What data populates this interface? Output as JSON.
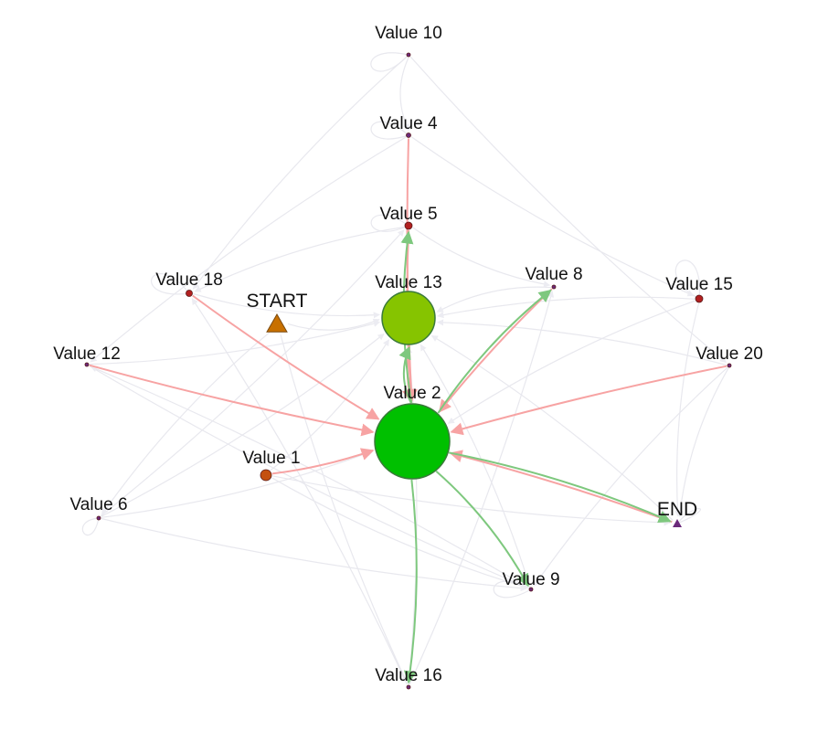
{
  "colors": {
    "background": "#ffffff",
    "edge_faint": "#e8e8ee",
    "edge_red": "#f7a3a3",
    "edge_green": "#7ec87e",
    "node_purple": "#6b2a7a",
    "node_red": "#b22020",
    "node_orange": "#c4500f",
    "node_lime": "#86c400",
    "node_green": "#00c000",
    "node_triangle": "#c87000"
  },
  "nodes": [
    {
      "id": "value10",
      "label": "Value 10",
      "shape": "dot",
      "color": "#6b2a7a"
    },
    {
      "id": "value4",
      "label": "Value 4",
      "shape": "dot",
      "color": "#6b2a7a"
    },
    {
      "id": "value5",
      "label": "Value 5",
      "shape": "dot",
      "color": "#b22020"
    },
    {
      "id": "value13",
      "label": "Value 13",
      "shape": "circle",
      "color": "#86c400"
    },
    {
      "id": "value18",
      "label": "Value 18",
      "shape": "dot",
      "color": "#b22020"
    },
    {
      "id": "start",
      "label": "START",
      "shape": "triangle",
      "color": "#c87000"
    },
    {
      "id": "value8",
      "label": "Value 8",
      "shape": "dot",
      "color": "#6b2a7a"
    },
    {
      "id": "value15",
      "label": "Value 15",
      "shape": "dot",
      "color": "#b22020"
    },
    {
      "id": "value12",
      "label": "Value 12",
      "shape": "dot",
      "color": "#6b2a7a"
    },
    {
      "id": "value20",
      "label": "Value 20",
      "shape": "dot",
      "color": "#6b2a7a"
    },
    {
      "id": "value2",
      "label": "Value 2",
      "shape": "circle",
      "color": "#00c000"
    },
    {
      "id": "value1",
      "label": "Value 1",
      "shape": "dot",
      "color": "#c4500f"
    },
    {
      "id": "value6",
      "label": "Value 6",
      "shape": "dot",
      "color": "#6b2a7a"
    },
    {
      "id": "end",
      "label": "END",
      "shape": "triangle-small",
      "color": "#6b2a7a"
    },
    {
      "id": "value9",
      "label": "Value 9",
      "shape": "dot",
      "color": "#6b2a7a"
    },
    {
      "id": "value16",
      "label": "Value 16",
      "shape": "dot",
      "color": "#6b2a7a"
    }
  ],
  "edges": [
    {
      "from": "value18",
      "to": "value2",
      "kind": "red"
    },
    {
      "from": "value12",
      "to": "value2",
      "kind": "red"
    },
    {
      "from": "value1",
      "to": "value2",
      "kind": "red"
    },
    {
      "from": "value20",
      "to": "value2",
      "kind": "red"
    },
    {
      "from": "value8",
      "to": "value2",
      "kind": "red"
    },
    {
      "from": "value4",
      "to": "value2",
      "kind": "red"
    },
    {
      "from": "value5",
      "to": "value2",
      "kind": "red"
    },
    {
      "from": "value13",
      "to": "value2",
      "kind": "red"
    },
    {
      "from": "end",
      "to": "value2",
      "kind": "red"
    },
    {
      "from": "value2",
      "to": "value13",
      "kind": "green"
    },
    {
      "from": "value2",
      "to": "value5",
      "kind": "green"
    },
    {
      "from": "value2",
      "to": "value8",
      "kind": "green"
    },
    {
      "from": "value2",
      "to": "end",
      "kind": "green"
    },
    {
      "from": "value2",
      "to": "value9",
      "kind": "green"
    },
    {
      "from": "value2",
      "to": "value16",
      "kind": "green"
    },
    {
      "from": "start",
      "to": "value13",
      "kind": "faint"
    },
    {
      "from": "value10",
      "to": "value4",
      "kind": "faint"
    },
    {
      "from": "value18",
      "to": "value13",
      "kind": "faint"
    },
    {
      "from": "value12",
      "to": "value13",
      "kind": "faint"
    },
    {
      "from": "value6",
      "to": "value13",
      "kind": "faint"
    },
    {
      "from": "value6",
      "to": "value5",
      "kind": "faint"
    },
    {
      "from": "value8",
      "to": "value13",
      "kind": "faint"
    },
    {
      "from": "value15",
      "to": "value13",
      "kind": "faint"
    },
    {
      "from": "value20",
      "to": "value13",
      "kind": "faint"
    },
    {
      "from": "value9",
      "to": "value13",
      "kind": "faint"
    },
    {
      "from": "value16",
      "to": "value13",
      "kind": "faint"
    },
    {
      "from": "value1",
      "to": "value13",
      "kind": "faint"
    },
    {
      "from": "end",
      "to": "value13",
      "kind": "faint"
    },
    {
      "from": "value10",
      "to": "value20",
      "kind": "faint"
    },
    {
      "from": "value10",
      "to": "value18",
      "kind": "faint"
    },
    {
      "from": "value4",
      "to": "value15",
      "kind": "faint"
    },
    {
      "from": "value4",
      "to": "value12",
      "kind": "faint"
    },
    {
      "from": "value6",
      "to": "value9",
      "kind": "faint"
    },
    {
      "from": "value6",
      "to": "value2",
      "kind": "faint"
    },
    {
      "from": "value12",
      "to": "value9",
      "kind": "faint"
    },
    {
      "from": "value1",
      "to": "value9",
      "kind": "faint"
    },
    {
      "from": "value1",
      "to": "end",
      "kind": "faint"
    },
    {
      "from": "value16",
      "to": "value8",
      "kind": "faint"
    },
    {
      "from": "value16",
      "to": "value18",
      "kind": "faint"
    },
    {
      "from": "value15",
      "to": "value2",
      "kind": "faint"
    },
    {
      "from": "value15",
      "to": "end",
      "kind": "faint"
    },
    {
      "from": "value20",
      "to": "end",
      "kind": "faint"
    },
    {
      "from": "value20",
      "to": "value9",
      "kind": "faint"
    },
    {
      "from": "start",
      "to": "value6",
      "kind": "faint"
    },
    {
      "from": "start",
      "to": "value16",
      "kind": "faint"
    },
    {
      "from": "value5",
      "to": "value8",
      "kind": "faint"
    },
    {
      "from": "value5",
      "to": "value18",
      "kind": "faint"
    },
    {
      "from": "value9",
      "to": "value12",
      "kind": "faint"
    }
  ],
  "self_loops": [
    "value10",
    "value4",
    "value5",
    "value18",
    "value15",
    "value6",
    "end",
    "value9",
    "value2"
  ]
}
